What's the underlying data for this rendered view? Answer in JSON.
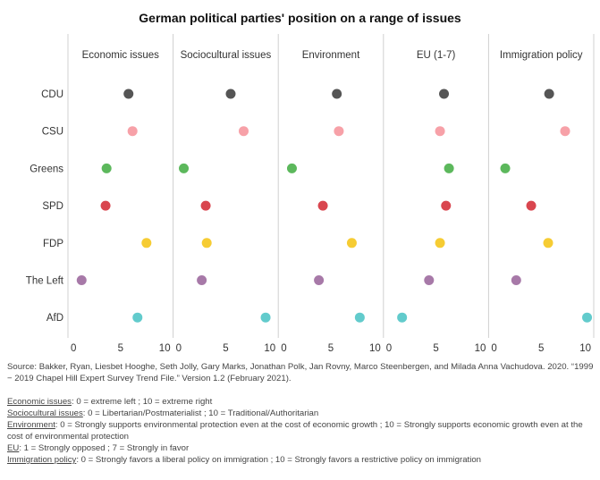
{
  "title": "German political parties' position on a range of issues",
  "chart_data": {
    "type": "scatter",
    "panels": [
      "Economic issues",
      "Sociocultural issues",
      "Environment",
      "EU (1-7)",
      "Immigration policy"
    ],
    "parties": [
      "CDU",
      "CSU",
      "Greens",
      "SPD",
      "FDP",
      "The Left",
      "AfD"
    ],
    "colors": {
      "CDU": "#555555",
      "CSU": "#f7a1a8",
      "Greens": "#5cb85c",
      "SPD": "#d9464f",
      "FDP": "#f6cc33",
      "The Left": "#a779a8",
      "AfD": "#62cbcc"
    },
    "xlim": [
      0,
      10
    ],
    "xticks": [
      0,
      5,
      10
    ],
    "series": [
      {
        "name": "CDU",
        "values": [
          5.8,
          5.5,
          5.6,
          5.8,
          5.8
        ]
      },
      {
        "name": "CSU",
        "values": [
          6.2,
          6.8,
          5.8,
          5.4,
          7.4
        ]
      },
      {
        "name": "Greens",
        "values": [
          3.6,
          0.8,
          1.1,
          6.3,
          1.4
        ]
      },
      {
        "name": "SPD",
        "values": [
          3.5,
          3.0,
          4.2,
          6.0,
          4.0
        ]
      },
      {
        "name": "FDP",
        "values": [
          7.6,
          3.1,
          7.1,
          5.4,
          5.7
        ]
      },
      {
        "name": "The Left",
        "values": [
          1.1,
          2.6,
          3.8,
          4.3,
          2.5
        ]
      },
      {
        "name": "AfD",
        "values": [
          6.7,
          9.0,
          7.9,
          1.6,
          9.6
        ]
      }
    ]
  },
  "footer": {
    "source": "Source: Bakker, Ryan, Liesbet Hooghe, Seth Jolly, Gary Marks, Jonathan Polk, Jan Rovny, Marco Steenbergen, and Milada Anna Vachudova. 2020. “1999 − 2019 Chapel Hill Expert Survey Trend File.” Version 1.2 (February 2021).",
    "defs": [
      {
        "term": "Economic issues",
        "text": ": 0 = extreme left ; 10 = extreme right"
      },
      {
        "term": "Sociocultural issues",
        "text": ": 0 = Libertarian/Postmaterialist ; 10 = Traditional/Authoritarian"
      },
      {
        "term": "Environment",
        "text": ": 0 = Strongly supports environmental protection even at the cost of economic growth ; 10 = Strongly supports economic growth even at the cost of environmental protection"
      },
      {
        "term": "EU",
        "text": ": 1 = Strongly opposed ; 7 = Strongly in favor"
      },
      {
        "term": "Immigration policy",
        "text": ": 0 = Strongly favors a liberal policy on immigration ; 10 = Strongly favors a restrictive policy on immigration"
      }
    ]
  }
}
